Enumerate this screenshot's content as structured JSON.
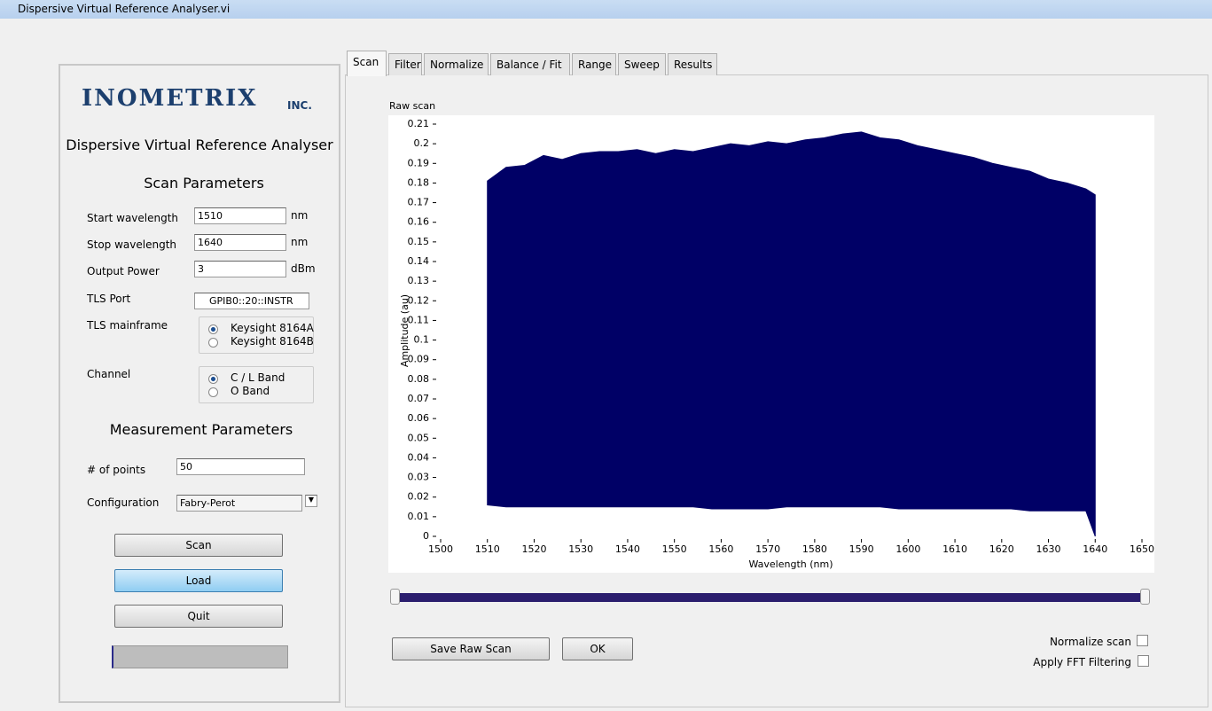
{
  "window": {
    "title": "Dispersive Virtual Reference Analyser.vi"
  },
  "logo": {
    "name": "INOMETRIX",
    "suffix": "INC."
  },
  "app_title": "Dispersive Virtual Reference Analyser",
  "scan_parameters": {
    "heading": "Scan Parameters",
    "fields": [
      {
        "label": "Start wavelength",
        "value": "1510",
        "unit": "nm"
      },
      {
        "label": "Stop wavelength",
        "value": "1640",
        "unit": "nm"
      },
      {
        "label": "Output Power",
        "value": "3",
        "unit": "dBm"
      }
    ],
    "tls_port": {
      "label": "TLS Port",
      "value": "GPIB0::20::INSTR"
    },
    "tls_mainframe": {
      "label": "TLS mainframe",
      "options": [
        "Keysight 8164A",
        "Keysight 8164B"
      ]
    },
    "channel": {
      "label": "Channel",
      "options": [
        "C / L Band",
        "O Band"
      ]
    }
  },
  "measurement_parameters": {
    "heading": "Measurement Parameters",
    "points": {
      "label": "# of points",
      "value": "50"
    },
    "configuration": {
      "label": "Configuration",
      "value": "Fabry-Perot"
    }
  },
  "buttons": [
    "Scan",
    "Load",
    "Quit"
  ],
  "tabs": [
    "Scan",
    "Filter",
    "Normalize",
    "Balance / Fit",
    "Range",
    "Sweep",
    "Results"
  ],
  "chart_data": {
    "type": "range-area",
    "title": "Raw scan",
    "x_label": "Wavelength (nm)",
    "y_label": "Amplitude (au)",
    "color": "#000066",
    "x": [
      1510,
      1514,
      1518,
      1522,
      1526,
      1530,
      1534,
      1538,
      1542,
      1546,
      1550,
      1554,
      1558,
      1562,
      1566,
      1570,
      1574,
      1578,
      1582,
      1586,
      1590,
      1594,
      1598,
      1602,
      1606,
      1610,
      1614,
      1618,
      1622,
      1626,
      1630,
      1634,
      1638,
      1640
    ],
    "high": [
      0.181,
      0.188,
      0.189,
      0.194,
      0.192,
      0.195,
      0.196,
      0.196,
      0.197,
      0.195,
      0.197,
      0.196,
      0.198,
      0.2,
      0.199,
      0.201,
      0.2,
      0.202,
      0.203,
      0.205,
      0.206,
      0.203,
      0.202,
      0.199,
      0.197,
      0.195,
      0.193,
      0.19,
      0.188,
      0.186,
      0.182,
      0.18,
      0.177,
      0.174
    ],
    "low": [
      0.016,
      0.015,
      0.015,
      0.015,
      0.015,
      0.015,
      0.015,
      0.015,
      0.015,
      0.015,
      0.015,
      0.015,
      0.014,
      0.014,
      0.014,
      0.014,
      0.015,
      0.015,
      0.015,
      0.015,
      0.015,
      0.015,
      0.014,
      0.014,
      0.014,
      0.014,
      0.014,
      0.014,
      0.014,
      0.013,
      0.013,
      0.013,
      0.013,
      0
    ],
    "xlim": [
      1500,
      1650
    ],
    "xticks": [
      1500,
      1510,
      1520,
      1530,
      1540,
      1550,
      1560,
      1570,
      1580,
      1590,
      1600,
      1610,
      1620,
      1630,
      1640,
      1650
    ],
    "ylim": [
      0,
      0.21
    ],
    "yticks": [
      0,
      0.01,
      0.02,
      0.03,
      0.04,
      0.05,
      0.06,
      0.07,
      0.08,
      0.09,
      0.1,
      0.11,
      0.12,
      0.13,
      0.14,
      0.15,
      0.16,
      0.17,
      0.18,
      0.19,
      0.2,
      0.21
    ]
  },
  "actions": [
    "Save Raw Scan",
    "OK"
  ],
  "options": [
    "Normalize scan",
    "Apply FFT Filtering"
  ]
}
